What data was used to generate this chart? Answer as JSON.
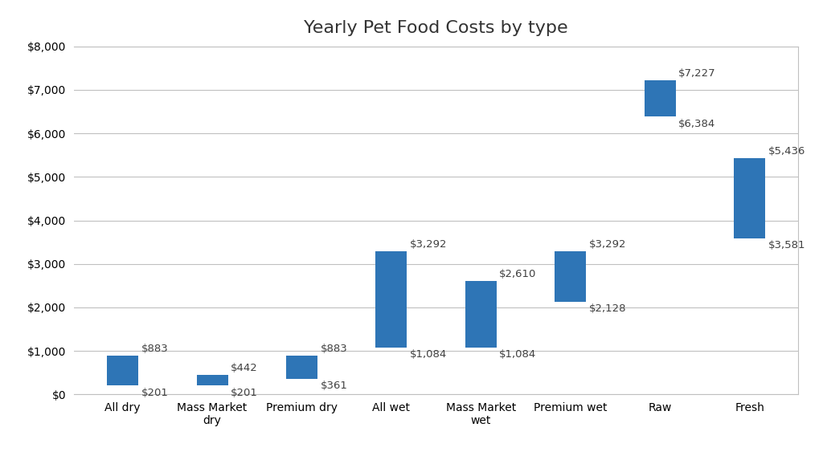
{
  "title": "Yearly Pet Food Costs by type",
  "categories": [
    "All dry",
    "Mass Market\ndry",
    "Premium dry",
    "All wet",
    "Mass Market\nwet",
    "Premium wet",
    "Raw",
    "Fresh"
  ],
  "low_values": [
    201,
    201,
    361,
    1084,
    1084,
    2128,
    6384,
    3581
  ],
  "high_values": [
    883,
    442,
    883,
    3292,
    2610,
    3292,
    7227,
    5436
  ],
  "bar_color": "#2E75B6",
  "background_color": "#ffffff",
  "ylim": [
    0,
    8000
  ],
  "yticks": [
    0,
    1000,
    2000,
    3000,
    4000,
    5000,
    6000,
    7000,
    8000
  ],
  "title_fontsize": 16,
  "annotation_fontsize": 9.5,
  "tick_fontsize": 10,
  "grid_color": "#c0c0c0",
  "border_color": "#c0c0c0",
  "figsize": [
    10.24,
    5.78
  ],
  "dpi": 100,
  "bar_width": 0.35
}
